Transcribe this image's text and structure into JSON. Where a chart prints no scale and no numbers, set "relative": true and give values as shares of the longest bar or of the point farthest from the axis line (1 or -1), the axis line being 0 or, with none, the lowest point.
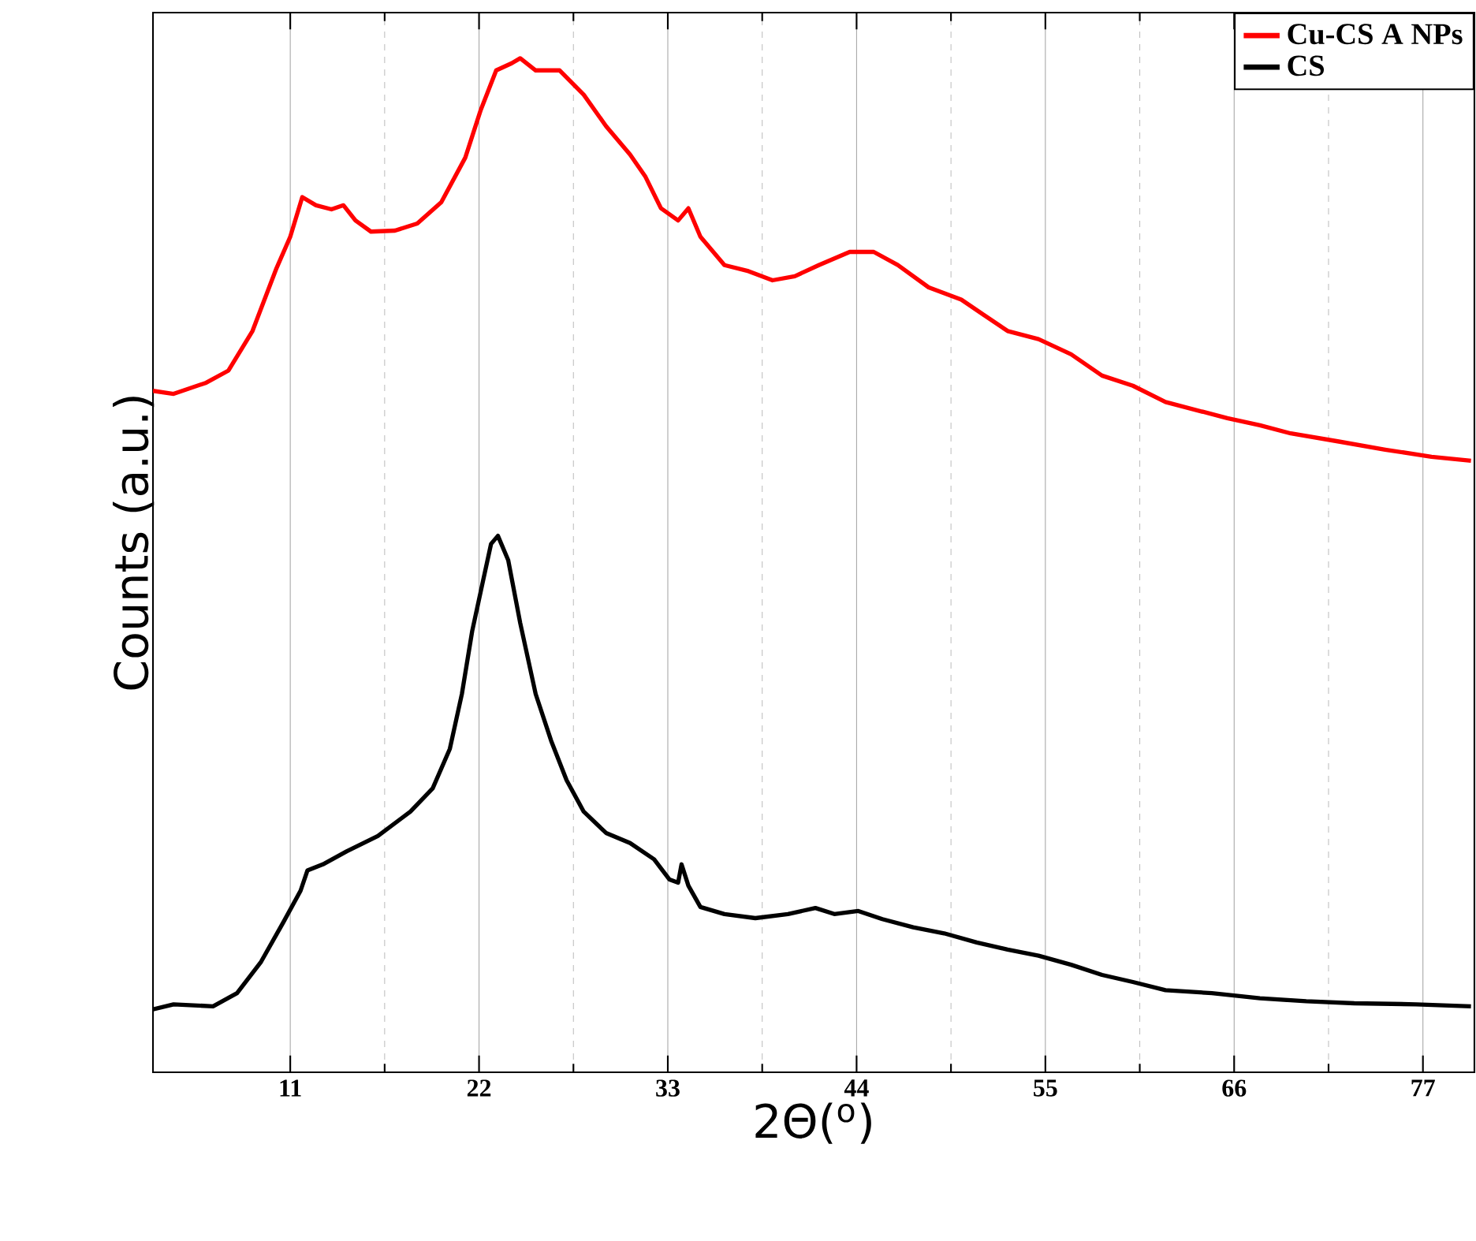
{
  "chart_data": {
    "type": "line",
    "relative": true,
    "xlabel": "2Θ($^{o}$)",
    "ylabel": "Counts (a.u.)",
    "xlim": [
      3,
      80
    ],
    "xticks": [
      11,
      22,
      33,
      44,
      55,
      66,
      77
    ],
    "grid": "x",
    "legend": "top right",
    "marker": "none",
    "line_style": "solid",
    "series": [
      {
        "name": "Cu-CS A NPs",
        "color": "#ff0000",
        "x": [
          3.0,
          4.2,
          6.1,
          7.4,
          8.8,
          10.2,
          11.0,
          11.7,
          12.5,
          13.4,
          14.1,
          14.8,
          15.7,
          17.1,
          18.4,
          19.8,
          21.2,
          22.1,
          23.0,
          23.9,
          24.4,
          25.3,
          26.7,
          28.1,
          29.4,
          30.8,
          31.7,
          32.6,
          33.6,
          34.2,
          34.9,
          36.3,
          37.7,
          39.1,
          40.4,
          41.8,
          43.6,
          45.0,
          46.4,
          48.2,
          50.1,
          51.4,
          52.8,
          54.6,
          56.5,
          58.3,
          60.1,
          62.0,
          63.8,
          65.6,
          67.5,
          69.3,
          72.1,
          74.8,
          77.5,
          79.8
        ],
        "values": [
          0.672,
          0.669,
          0.68,
          0.692,
          0.731,
          0.793,
          0.824,
          0.863,
          0.855,
          0.851,
          0.855,
          0.84,
          0.829,
          0.83,
          0.837,
          0.858,
          0.902,
          0.949,
          0.988,
          0.995,
          1.0,
          0.988,
          0.988,
          0.964,
          0.933,
          0.905,
          0.883,
          0.852,
          0.84,
          0.852,
          0.824,
          0.796,
          0.79,
          0.781,
          0.785,
          0.796,
          0.809,
          0.809,
          0.796,
          0.774,
          0.762,
          0.747,
          0.731,
          0.723,
          0.708,
          0.687,
          0.677,
          0.661,
          0.653,
          0.645,
          0.638,
          0.63,
          0.622,
          0.614,
          0.607,
          0.603
        ]
      },
      {
        "name": "CS",
        "color": "#000000",
        "x": [
          3.0,
          4.2,
          6.5,
          7.9,
          9.3,
          10.6,
          11.6,
          12.0,
          12.9,
          14.3,
          16.1,
          18.0,
          19.3,
          20.3,
          21.0,
          21.6,
          22.2,
          22.7,
          23.1,
          23.7,
          24.4,
          25.3,
          26.2,
          27.1,
          28.1,
          29.4,
          30.8,
          32.2,
          33.1,
          33.6,
          33.8,
          34.2,
          34.9,
          36.3,
          38.1,
          40.0,
          41.6,
          42.7,
          44.1,
          45.5,
          47.3,
          49.1,
          51.0,
          52.8,
          54.6,
          56.5,
          58.3,
          60.1,
          62.0,
          64.7,
          67.5,
          70.2,
          73.0,
          76.6,
          79.8
        ],
        "values": [
          0.062,
          0.067,
          0.065,
          0.078,
          0.109,
          0.148,
          0.179,
          0.199,
          0.205,
          0.218,
          0.233,
          0.257,
          0.28,
          0.319,
          0.373,
          0.435,
          0.482,
          0.521,
          0.529,
          0.505,
          0.443,
          0.373,
          0.327,
          0.288,
          0.257,
          0.236,
          0.226,
          0.21,
          0.19,
          0.187,
          0.205,
          0.184,
          0.163,
          0.156,
          0.152,
          0.156,
          0.162,
          0.156,
          0.159,
          0.151,
          0.143,
          0.137,
          0.128,
          0.121,
          0.115,
          0.106,
          0.096,
          0.089,
          0.081,
          0.078,
          0.073,
          0.07,
          0.068,
          0.067,
          0.065
        ]
      }
    ]
  }
}
